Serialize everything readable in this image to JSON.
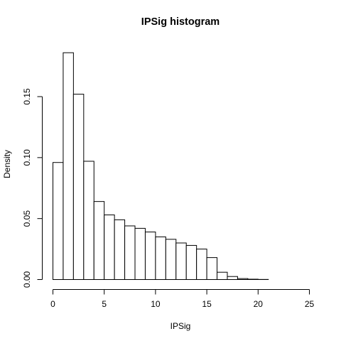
{
  "chart_data": {
    "type": "bar",
    "title": "IPSig  histogram",
    "xlabel": "IPSig",
    "ylabel": "Density",
    "xlim": [
      0,
      25
    ],
    "ylim": [
      0,
      0.187
    ],
    "bin_width": 1,
    "x_ticks": [
      "0",
      "5",
      "10",
      "15",
      "20",
      "25"
    ],
    "y_ticks": [
      "0.00",
      "0.05",
      "0.10",
      "0.15"
    ],
    "bins": [
      {
        "start": 0,
        "end": 1,
        "density": 0.096
      },
      {
        "start": 1,
        "end": 2,
        "density": 0.186
      },
      {
        "start": 2,
        "end": 3,
        "density": 0.152
      },
      {
        "start": 3,
        "end": 4,
        "density": 0.097
      },
      {
        "start": 4,
        "end": 5,
        "density": 0.064
      },
      {
        "start": 5,
        "end": 6,
        "density": 0.053
      },
      {
        "start": 6,
        "end": 7,
        "density": 0.049
      },
      {
        "start": 7,
        "end": 8,
        "density": 0.044
      },
      {
        "start": 8,
        "end": 9,
        "density": 0.042
      },
      {
        "start": 9,
        "end": 10,
        "density": 0.039
      },
      {
        "start": 10,
        "end": 11,
        "density": 0.035
      },
      {
        "start": 11,
        "end": 12,
        "density": 0.033
      },
      {
        "start": 12,
        "end": 13,
        "density": 0.03
      },
      {
        "start": 13,
        "end": 14,
        "density": 0.028
      },
      {
        "start": 14,
        "end": 15,
        "density": 0.025
      },
      {
        "start": 15,
        "end": 16,
        "density": 0.018
      },
      {
        "start": 16,
        "end": 17,
        "density": 0.006
      },
      {
        "start": 17,
        "end": 18,
        "density": 0.0025
      },
      {
        "start": 18,
        "end": 19,
        "density": 0.0008
      },
      {
        "start": 19,
        "end": 20,
        "density": 0.0003
      },
      {
        "start": 20,
        "end": 21,
        "density": 0.0001
      },
      {
        "start": 21,
        "end": 22,
        "density": 0
      },
      {
        "start": 22,
        "end": 23,
        "density": 0
      },
      {
        "start": 23,
        "end": 24,
        "density": 0
      },
      {
        "start": 24,
        "end": 25,
        "density": 0
      }
    ],
    "grid": false,
    "legend": "none"
  }
}
